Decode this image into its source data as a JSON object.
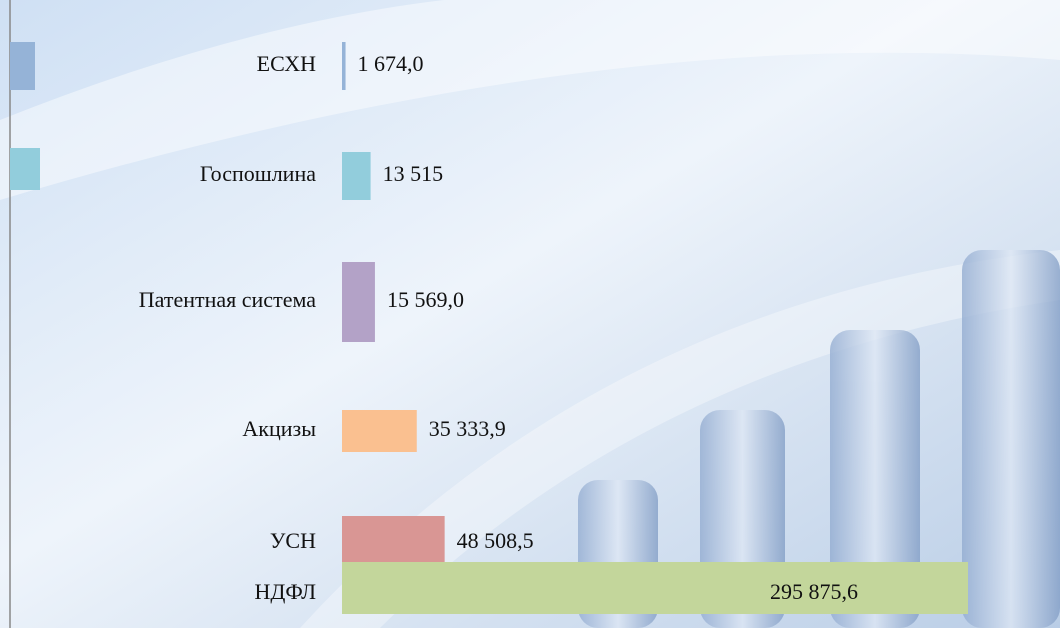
{
  "chart_data": {
    "type": "bar",
    "orientation": "horizontal",
    "categories": [
      "ЕСХН",
      "Госпошлина",
      "Патентная система",
      "Акцизы",
      "УСН",
      "НДФЛ"
    ],
    "values": [
      1674.0,
      13515,
      15569.0,
      35333.9,
      48508.5,
      295875.6
    ],
    "value_labels": [
      "1 674,0",
      "13 515",
      "15 569,0",
      "35 333,9",
      "48 508,5",
      "295 875,6"
    ],
    "colors": [
      "#95b3d7",
      "#92cddc",
      "#b3a2c7",
      "#fac090",
      "#d99694",
      "#c3d69b"
    ]
  }
}
